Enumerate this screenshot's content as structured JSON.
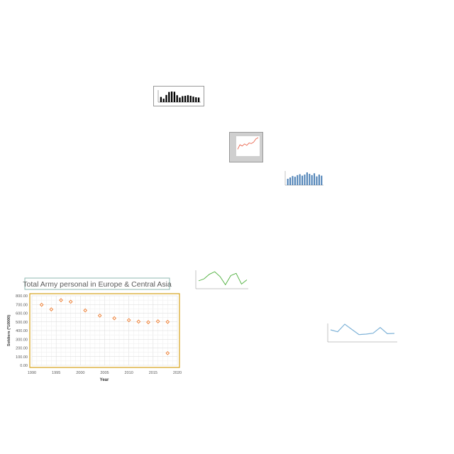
{
  "chart_data": [
    {
      "type": "scatter",
      "title": "Total Army personal in Europe & Central Asia",
      "xlabel": "Year",
      "ylabel": "Soldiers (*10000)",
      "xlim": [
        1990,
        2020
      ],
      "ylim": [
        0,
        800
      ],
      "xticks": [
        "1990",
        "1995",
        "2000",
        "2005",
        "2010",
        "2015",
        "2020"
      ],
      "yticks": [
        "0.00",
        "100.00",
        "200.00",
        "300.00",
        "400.00",
        "500.00",
        "600.00",
        "700.00",
        "800.00"
      ],
      "grid": true,
      "marker_color": "#ED7D31",
      "frame_color": "#D4A017",
      "x": [
        1992,
        1994,
        1996,
        1998,
        2001,
        2004,
        2007,
        2010,
        2012,
        2014,
        2016,
        2018,
        2018
      ],
      "y": [
        697,
        644,
        750,
        732,
        632,
        572,
        542,
        520,
        503,
        496,
        506,
        500,
        140
      ]
    },
    {
      "type": "bar",
      "title": "",
      "values": [
        45,
        30,
        62,
        88,
        92,
        90,
        60,
        40,
        52,
        55,
        60,
        55,
        48,
        42,
        40
      ],
      "color": "#000000"
    },
    {
      "type": "line",
      "title": "",
      "values": [
        30,
        55,
        48,
        60,
        52,
        65,
        62,
        70,
        88,
        95
      ],
      "color": "#e8553c",
      "background": "#d4d4d4"
    },
    {
      "type": "bar",
      "title": "",
      "values": [
        35,
        42,
        50,
        46,
        55,
        60,
        52,
        58,
        70,
        62,
        55,
        65,
        48,
        58,
        52
      ],
      "color": "#4a7fb5"
    },
    {
      "type": "line",
      "title": "",
      "values": [
        22,
        28,
        42,
        50,
        35,
        10,
        38,
        45,
        12,
        25
      ],
      "color": "#4caf3a"
    },
    {
      "type": "line",
      "title": "",
      "values": [
        48,
        40,
        72,
        50,
        28,
        30,
        34,
        58,
        32,
        33
      ],
      "color": "#7fb3d8"
    }
  ]
}
